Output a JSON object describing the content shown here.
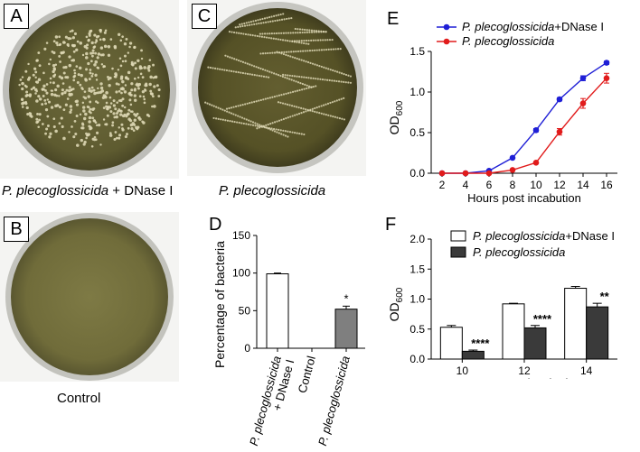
{
  "panels": {
    "A": {
      "letter": "A",
      "caption_italic": "P. plecoglossicida",
      "caption_rest": " + DNase I"
    },
    "B": {
      "letter": "B",
      "caption": "Control"
    },
    "C": {
      "letter": "C",
      "caption_italic": "P. plecoglossicida"
    },
    "D": {
      "letter": "D"
    },
    "E": {
      "letter": "E"
    },
    "F": {
      "letter": "F"
    }
  },
  "colors": {
    "plate_agar": "#6e6a3a",
    "plate_rim": "#c9c9c6",
    "colony": "#ddd7b4",
    "series_blue": "#1f1fd6",
    "series_red": "#e11b1b",
    "bar_dark": "#3a3a3a",
    "bar_gray": "#7f7f7f"
  },
  "chart_data": [
    {
      "panel": "D",
      "type": "bar",
      "categories": [
        "P. plecoglossicida\n+ DNase I",
        "Control",
        "P. plecoglossicida"
      ],
      "values": [
        99,
        0,
        52
      ],
      "errors": [
        1,
        0,
        4
      ],
      "bar_colors": [
        "#ffffff",
        "#ffffff",
        "#7f7f7f"
      ],
      "annotations": [
        "",
        "",
        "*"
      ],
      "ylabel": "Percentage of bacteria",
      "ylim": [
        0,
        150
      ],
      "yticks": [
        "0",
        "50",
        "100",
        "150"
      ],
      "grid": false
    },
    {
      "panel": "E",
      "type": "line",
      "x": [
        2,
        4,
        6,
        8,
        10,
        12,
        14,
        16
      ],
      "xticks": [
        "2",
        "4",
        "6",
        "8",
        "10",
        "12",
        "14",
        "16"
      ],
      "series": [
        {
          "name_italic": "P. plecoglossicida",
          "name_rest": "+DNase I",
          "color": "#1f1fd6",
          "values": [
            0.0,
            0.0,
            0.03,
            0.19,
            0.53,
            0.91,
            1.17,
            1.36
          ],
          "errors": [
            0,
            0,
            0,
            0.01,
            0.02,
            0.02,
            0.03,
            0.02
          ]
        },
        {
          "name_italic": "P. plecoglossicida",
          "name_rest": "",
          "color": "#e11b1b",
          "values": [
            0.0,
            0.0,
            0.0,
            0.04,
            0.13,
            0.51,
            0.86,
            1.17
          ],
          "errors": [
            0,
            0,
            0,
            0,
            0.01,
            0.04,
            0.06,
            0.06
          ]
        }
      ],
      "xlabel": "Hours post incabution",
      "ylabel_main": "OD",
      "ylabel_sub": "600",
      "ylim": [
        0,
        1.5
      ],
      "yticks": [
        "0.0",
        "0.5",
        "1.0",
        "1.5"
      ],
      "legend": "top-left",
      "grid": false
    },
    {
      "panel": "F",
      "type": "bar",
      "categories": [
        "10",
        "12",
        "14"
      ],
      "series": [
        {
          "name_italic": "P. plecoglossicida",
          "name_rest": "+DNase I",
          "color": "#ffffff",
          "values": [
            0.53,
            0.92,
            1.18
          ],
          "errors": [
            0.03,
            0.01,
            0.03
          ],
          "annotations": [
            "",
            "",
            ""
          ]
        },
        {
          "name_italic": "P. plecoglossicida",
          "name_rest": "",
          "color": "#3a3a3a",
          "values": [
            0.13,
            0.52,
            0.87
          ],
          "errors": [
            0.02,
            0.04,
            0.06
          ],
          "annotations": [
            "****",
            "****",
            "**"
          ]
        }
      ],
      "xlabel": "Hours post incabution",
      "ylabel_main": "OD",
      "ylabel_sub": "600",
      "ylim": [
        0,
        2.0
      ],
      "yticks": [
        "0.0",
        "0.5",
        "1.0",
        "1.5",
        "2.0"
      ],
      "legend": "top-left",
      "grid": false
    }
  ]
}
